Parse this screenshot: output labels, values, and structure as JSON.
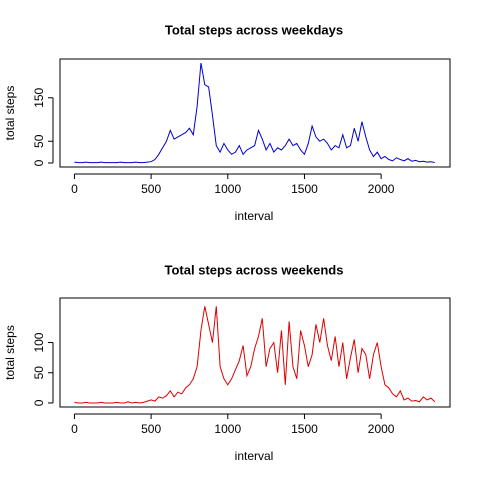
{
  "chart_data": [
    {
      "type": "line",
      "title": "Total steps across weekdays",
      "x_label": "interval",
      "y_label": "total steps",
      "x": [
        0,
        25,
        50,
        75,
        100,
        125,
        150,
        175,
        200,
        225,
        250,
        275,
        300,
        325,
        350,
        375,
        400,
        425,
        450,
        475,
        500,
        525,
        550,
        575,
        600,
        625,
        650,
        675,
        700,
        725,
        750,
        775,
        800,
        825,
        850,
        875,
        900,
        925,
        950,
        975,
        1000,
        1025,
        1050,
        1075,
        1100,
        1125,
        1150,
        1175,
        1200,
        1225,
        1250,
        1275,
        1300,
        1325,
        1350,
        1375,
        1400,
        1425,
        1450,
        1475,
        1500,
        1525,
        1550,
        1575,
        1600,
        1625,
        1650,
        1675,
        1700,
        1725,
        1750,
        1775,
        1800,
        1825,
        1850,
        1875,
        1900,
        1925,
        1950,
        1975,
        2000,
        2025,
        2050,
        2075,
        2100,
        2125,
        2150,
        2175,
        2200,
        2225,
        2250,
        2275,
        2300,
        2325,
        2350
      ],
      "series": [
        {
          "name": "weekday",
          "color": "#0000cc",
          "values": [
            2,
            1,
            1,
            2,
            1,
            1,
            1,
            2,
            1,
            1,
            1,
            1,
            2,
            1,
            1,
            1,
            2,
            1,
            1,
            2,
            3,
            8,
            20,
            35,
            50,
            75,
            55,
            60,
            65,
            70,
            80,
            65,
            130,
            230,
            180,
            175,
            110,
            40,
            25,
            45,
            30,
            20,
            25,
            40,
            20,
            30,
            35,
            40,
            75,
            55,
            30,
            45,
            25,
            35,
            30,
            40,
            55,
            40,
            45,
            30,
            20,
            45,
            85,
            60,
            50,
            55,
            45,
            30,
            40,
            35,
            65,
            35,
            40,
            80,
            50,
            95,
            60,
            30,
            15,
            25,
            10,
            15,
            8,
            5,
            12,
            8,
            5,
            10,
            4,
            6,
            3,
            4,
            2,
            3,
            1
          ]
        }
      ],
      "xlim": [
        -94.2,
        2449.2
      ],
      "xticks": [
        0,
        500,
        1000,
        1500,
        2000
      ],
      "ylim": [
        -9.2,
        239.2
      ],
      "yticks": [
        0,
        50,
        150
      ]
    },
    {
      "type": "line",
      "title": "Total steps across weekends",
      "x_label": "interval",
      "y_label": "total steps",
      "x": [
        0,
        25,
        50,
        75,
        100,
        125,
        150,
        175,
        200,
        225,
        250,
        275,
        300,
        325,
        350,
        375,
        400,
        425,
        450,
        475,
        500,
        525,
        550,
        575,
        600,
        625,
        650,
        675,
        700,
        725,
        750,
        775,
        800,
        825,
        850,
        875,
        900,
        925,
        950,
        975,
        1000,
        1025,
        1050,
        1075,
        1100,
        1125,
        1150,
        1175,
        1200,
        1225,
        1250,
        1275,
        1300,
        1325,
        1350,
        1375,
        1400,
        1425,
        1450,
        1475,
        1500,
        1525,
        1550,
        1575,
        1600,
        1625,
        1650,
        1675,
        1700,
        1725,
        1750,
        1775,
        1800,
        1825,
        1850,
        1875,
        1900,
        1925,
        1950,
        1975,
        2000,
        2025,
        2050,
        2075,
        2100,
        2125,
        2150,
        2175,
        2200,
        2225,
        2250,
        2275,
        2300,
        2325,
        2350
      ],
      "series": [
        {
          "name": "weekend",
          "color": "#dd0000",
          "values": [
            1,
            0,
            0,
            1,
            0,
            0,
            0,
            1,
            0,
            0,
            0,
            1,
            0,
            0,
            2,
            0,
            1,
            0,
            1,
            3,
            5,
            3,
            10,
            8,
            12,
            20,
            10,
            18,
            15,
            25,
            30,
            40,
            60,
            120,
            160,
            130,
            100,
            160,
            60,
            40,
            30,
            40,
            55,
            70,
            95,
            45,
            60,
            90,
            110,
            140,
            60,
            90,
            100,
            50,
            120,
            30,
            135,
            60,
            40,
            120,
            95,
            60,
            80,
            130,
            100,
            140,
            95,
            70,
            110,
            60,
            100,
            40,
            75,
            105,
            50,
            90,
            80,
            40,
            80,
            100,
            60,
            30,
            25,
            15,
            10,
            20,
            5,
            8,
            3,
            4,
            2,
            10,
            5,
            8,
            2
          ]
        }
      ],
      "xlim": [
        -94.2,
        2449.2
      ],
      "xticks": [
        0,
        500,
        1000,
        1500,
        2000
      ],
      "ylim": [
        -6.7,
        173.7
      ],
      "yticks": [
        0,
        50,
        100
      ]
    }
  ]
}
